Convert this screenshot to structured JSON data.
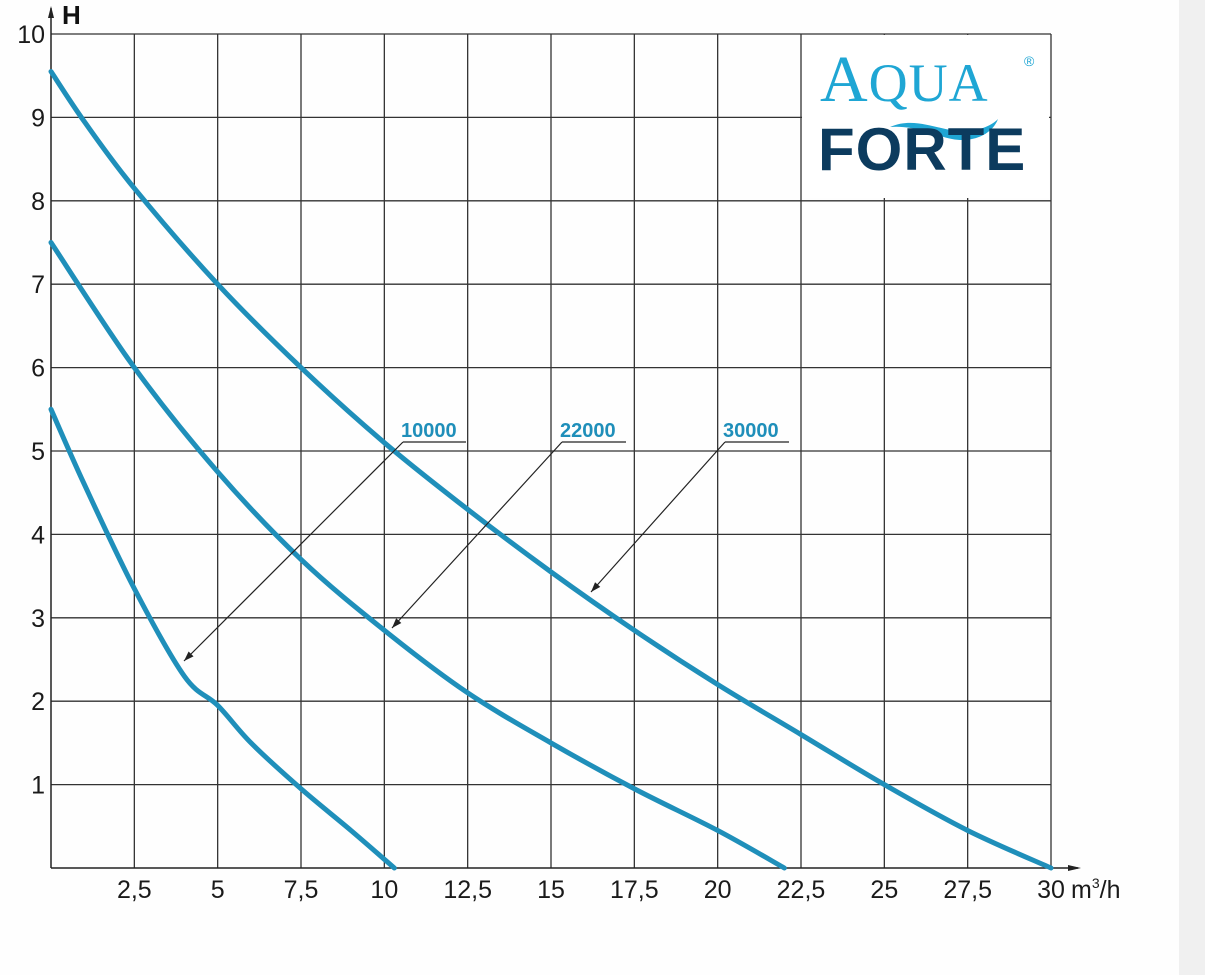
{
  "chart_data": {
    "type": "line",
    "title": "",
    "xlabel": "m³/h",
    "ylabel": "H",
    "xlim": [
      0,
      30
    ],
    "ylim": [
      0,
      10
    ],
    "x_ticks": [
      "2,5",
      "5",
      "7,5",
      "10",
      "12,5",
      "15",
      "17,5",
      "20",
      "22,5",
      "25",
      "27,5",
      "30"
    ],
    "y_ticks": [
      "1",
      "2",
      "3",
      "4",
      "5",
      "6",
      "7",
      "8",
      "9",
      "10"
    ],
    "grid": true,
    "legend_position": "callout labels",
    "series": [
      {
        "name": "10000",
        "points": [
          [
            0,
            5.5
          ],
          [
            1,
            4.6
          ],
          [
            2.5,
            3.35
          ],
          [
            4,
            2.3
          ],
          [
            5,
            1.95
          ],
          [
            6,
            1.5
          ],
          [
            7.5,
            0.95
          ],
          [
            9,
            0.45
          ],
          [
            10.3,
            0
          ]
        ]
      },
      {
        "name": "22000",
        "points": [
          [
            0,
            7.5
          ],
          [
            2.5,
            6.0
          ],
          [
            5,
            4.75
          ],
          [
            7.5,
            3.7
          ],
          [
            10,
            2.85
          ],
          [
            12.5,
            2.1
          ],
          [
            15,
            1.5
          ],
          [
            17.5,
            0.95
          ],
          [
            20,
            0.45
          ],
          [
            22,
            0
          ]
        ]
      },
      {
        "name": "30000",
        "points": [
          [
            0,
            9.55
          ],
          [
            1,
            8.95
          ],
          [
            2.5,
            8.15
          ],
          [
            5,
            7.0
          ],
          [
            7.5,
            6.0
          ],
          [
            10,
            5.1
          ],
          [
            12.5,
            4.3
          ],
          [
            15,
            3.55
          ],
          [
            17.5,
            2.85
          ],
          [
            20,
            2.2
          ],
          [
            22.5,
            1.6
          ],
          [
            25,
            1.0
          ],
          [
            27.5,
            0.45
          ],
          [
            30,
            0
          ]
        ]
      }
    ],
    "line_color": "#1f8fba"
  },
  "labels": {
    "l1": "10000",
    "l2": "22000",
    "l3": "30000",
    "ylabel": "H",
    "xunit": "m³/h"
  },
  "logo": {
    "line1_big": "A",
    "line1_rest": "QUA",
    "line2": "FORTE",
    "reg": "®"
  }
}
